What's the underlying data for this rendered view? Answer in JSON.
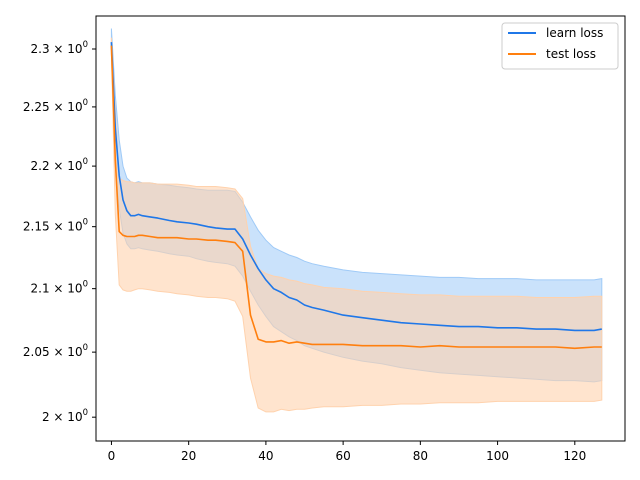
{
  "chart_data": {
    "type": "line",
    "title": "",
    "xlabel": "",
    "ylabel": "",
    "xlim": [
      -4,
      133
    ],
    "ylim": [
      1.982,
      2.329
    ],
    "yscale": "log",
    "x_ticks": [
      0,
      20,
      40,
      60,
      80,
      100,
      120
    ],
    "x_tick_labels": [
      "0",
      "20",
      "40",
      "60",
      "80",
      "100",
      "120"
    ],
    "y_ticks": [
      2.0,
      2.05,
      2.1,
      2.15,
      2.2,
      2.25,
      2.3
    ],
    "y_tick_mantissas": [
      "2",
      "2.05",
      "2.1",
      "2.15",
      "2.2",
      "2.25",
      "2.3"
    ],
    "y_tick_base": "× 10",
    "y_tick_exponent": "0",
    "grid": false,
    "legend_position": "upper-right",
    "x": [
      0,
      1,
      2,
      3,
      4,
      5,
      6,
      7,
      8,
      10,
      12,
      15,
      17,
      20,
      22,
      25,
      27,
      30,
      32,
      34,
      36,
      38,
      40,
      42,
      44,
      46,
      48,
      50,
      52,
      55,
      60,
      65,
      70,
      75,
      80,
      85,
      90,
      95,
      100,
      105,
      110,
      115,
      120,
      125,
      127
    ],
    "series": [
      {
        "name": "learn loss",
        "color": "#1f77e8",
        "band_color": "#9fcaf7",
        "values": [
          2.306,
          2.232,
          2.192,
          2.172,
          2.163,
          2.159,
          2.159,
          2.16,
          2.159,
          2.158,
          2.157,
          2.155,
          2.154,
          2.153,
          2.152,
          2.15,
          2.149,
          2.148,
          2.148,
          2.14,
          2.127,
          2.116,
          2.107,
          2.1,
          2.097,
          2.093,
          2.091,
          2.087,
          2.085,
          2.083,
          2.079,
          2.077,
          2.075,
          2.073,
          2.072,
          2.071,
          2.07,
          2.07,
          2.069,
          2.069,
          2.068,
          2.068,
          2.067,
          2.067,
          2.068
        ],
        "upper": [
          2.318,
          2.26,
          2.222,
          2.2,
          2.19,
          2.187,
          2.186,
          2.187,
          2.186,
          2.186,
          2.185,
          2.184,
          2.183,
          2.182,
          2.181,
          2.18,
          2.18,
          2.18,
          2.179,
          2.17,
          2.158,
          2.147,
          2.139,
          2.133,
          2.13,
          2.127,
          2.125,
          2.122,
          2.12,
          2.118,
          2.115,
          2.113,
          2.112,
          2.111,
          2.11,
          2.109,
          2.109,
          2.108,
          2.108,
          2.108,
          2.107,
          2.107,
          2.107,
          2.107,
          2.108
        ],
        "lower": [
          2.296,
          2.2,
          2.165,
          2.145,
          2.136,
          2.132,
          2.132,
          2.133,
          2.132,
          2.131,
          2.13,
          2.128,
          2.127,
          2.126,
          2.124,
          2.122,
          2.121,
          2.12,
          2.118,
          2.11,
          2.098,
          2.087,
          2.078,
          2.07,
          2.066,
          2.062,
          2.059,
          2.055,
          2.053,
          2.05,
          2.046,
          2.043,
          2.041,
          2.038,
          2.036,
          2.034,
          2.033,
          2.032,
          2.031,
          2.03,
          2.029,
          2.028,
          2.028,
          2.027,
          2.028
        ]
      },
      {
        "name": "test loss",
        "color": "#ff7f0e",
        "band_color": "#ffd2ad",
        "values": [
          2.303,
          2.205,
          2.146,
          2.143,
          2.142,
          2.142,
          2.142,
          2.143,
          2.143,
          2.142,
          2.141,
          2.141,
          2.141,
          2.14,
          2.14,
          2.139,
          2.139,
          2.138,
          2.137,
          2.13,
          2.079,
          2.06,
          2.058,
          2.058,
          2.059,
          2.057,
          2.058,
          2.057,
          2.056,
          2.056,
          2.056,
          2.055,
          2.055,
          2.055,
          2.054,
          2.055,
          2.054,
          2.054,
          2.054,
          2.054,
          2.054,
          2.054,
          2.053,
          2.054,
          2.054
        ],
        "upper": [
          2.31,
          2.245,
          2.19,
          2.188,
          2.187,
          2.187,
          2.186,
          2.186,
          2.186,
          2.186,
          2.185,
          2.185,
          2.185,
          2.184,
          2.183,
          2.183,
          2.183,
          2.182,
          2.181,
          2.173,
          2.134,
          2.116,
          2.112,
          2.11,
          2.109,
          2.107,
          2.106,
          2.104,
          2.103,
          2.101,
          2.1,
          2.098,
          2.097,
          2.096,
          2.095,
          2.095,
          2.094,
          2.094,
          2.094,
          2.094,
          2.093,
          2.093,
          2.093,
          2.094,
          2.094
        ],
        "lower": [
          2.296,
          2.16,
          2.103,
          2.099,
          2.098,
          2.098,
          2.099,
          2.1,
          2.1,
          2.099,
          2.098,
          2.097,
          2.096,
          2.095,
          2.094,
          2.093,
          2.093,
          2.092,
          2.09,
          2.078,
          2.03,
          2.007,
          2.004,
          2.004,
          2.006,
          2.005,
          2.006,
          2.006,
          2.007,
          2.008,
          2.008,
          2.009,
          2.009,
          2.01,
          2.01,
          2.011,
          2.011,
          2.011,
          2.012,
          2.012,
          2.012,
          2.012,
          2.012,
          2.012,
          2.013
        ]
      }
    ]
  }
}
